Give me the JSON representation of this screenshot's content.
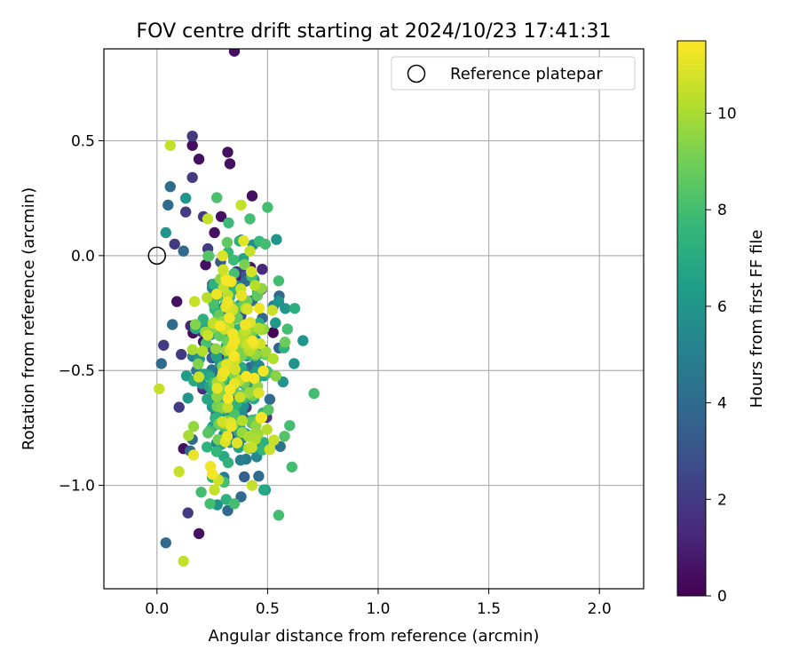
{
  "chart_data": {
    "type": "scatter",
    "title": "FOV centre drift starting at 2024/10/23 17:41:31",
    "xlabel": "Angular distance from reference (arcmin)",
    "ylabel": "Rotation from reference (arcmin)",
    "xlim": [
      -0.24,
      2.2
    ],
    "ylim": [
      -1.45,
      0.9
    ],
    "xticks": [
      0.0,
      0.5,
      1.0,
      1.5,
      2.0
    ],
    "xtick_labels": [
      "0.0",
      "0.5",
      "1.0",
      "1.5",
      "2.0"
    ],
    "yticks": [
      -1.0,
      -0.5,
      0.0,
      0.5
    ],
    "ytick_labels": [
      "−1.0",
      "−0.5",
      "0.0",
      "0.5"
    ],
    "grid": true,
    "legend": {
      "position": "top-right",
      "entries": [
        {
          "label": "Reference platepar",
          "marker": "open-circle"
        }
      ]
    },
    "reference_point": {
      "x": 0.0,
      "y": 0.0
    },
    "colorbar": {
      "label": "Hours from first FF file",
      "range": [
        0,
        11.5
      ],
      "ticks": [
        0,
        2,
        4,
        6,
        8,
        10
      ],
      "tick_labels": [
        "0",
        "2",
        "4",
        "6",
        "8",
        "10"
      ],
      "colormap": "viridis",
      "stops": [
        "#440154",
        "#482878",
        "#3e4989",
        "#31688e",
        "#26828e",
        "#1f9e89",
        "#35b779",
        "#6ece58",
        "#b5de2b",
        "#fde725"
      ]
    },
    "point_count": 420,
    "cluster_summary": "points concentrated at x 0.0–0.7 arcmin, y −1.3–0.9 arcmin, colored by hours 0–11.5",
    "series": [
      {
        "name": "hours 0–1 (purple)",
        "points": [
          [
            0.35,
            0.89
          ],
          [
            0.19,
            0.42
          ],
          [
            0.33,
            0.4
          ],
          [
            0.32,
            0.45
          ],
          [
            0.43,
            0.26
          ],
          [
            0.29,
            0.17
          ],
          [
            0.19,
            -1.21
          ],
          [
            0.12,
            -0.84
          ],
          [
            0.09,
            -0.2
          ],
          [
            0.26,
            0.1
          ],
          [
            0.22,
            -0.04
          ],
          [
            0.16,
            0.48
          ]
        ]
      },
      {
        "name": "hours 1–3 (indigo)",
        "points": [
          [
            0.16,
            0.52
          ],
          [
            0.16,
            0.34
          ],
          [
            0.21,
            0.17
          ],
          [
            0.13,
            0.19
          ],
          [
            0.08,
            0.05
          ],
          [
            0.03,
            -0.39
          ],
          [
            0.1,
            -0.66
          ],
          [
            0.14,
            -1.12
          ],
          [
            0.11,
            -0.43
          ],
          [
            0.2,
            -0.33
          ],
          [
            0.23,
            0.03
          ],
          [
            0.36,
            -0.07
          ]
        ]
      },
      {
        "name": "hours 3–5 (blue)",
        "points": [
          [
            0.04,
            -1.25
          ],
          [
            0.06,
            0.3
          ],
          [
            0.05,
            0.22
          ],
          [
            0.02,
            -0.47
          ],
          [
            0.07,
            -0.3
          ],
          [
            0.12,
            0.02
          ],
          [
            0.16,
            -0.8
          ],
          [
            0.15,
            -0.85
          ],
          [
            0.25,
            -0.61
          ],
          [
            0.32,
            -1.11
          ],
          [
            0.38,
            -1.05
          ],
          [
            0.46,
            -0.96
          ]
        ]
      },
      {
        "name": "hours 5–7 (teal)",
        "points": [
          [
            0.13,
            0.25
          ],
          [
            0.04,
            0.1
          ],
          [
            0.14,
            -0.62
          ],
          [
            0.3,
            -0.35
          ],
          [
            0.54,
            0.07
          ],
          [
            0.49,
            -1.02
          ],
          [
            0.55,
            -0.2
          ],
          [
            0.58,
            -0.23
          ],
          [
            0.66,
            -0.37
          ],
          [
            0.62,
            -0.47
          ],
          [
            0.57,
            -0.55
          ],
          [
            0.45,
            -0.84
          ]
        ]
      },
      {
        "name": "hours 7–9 (green)",
        "points": [
          [
            0.5,
            0.21
          ],
          [
            0.42,
            0.16
          ],
          [
            0.49,
            0.05
          ],
          [
            0.55,
            -0.11
          ],
          [
            0.59,
            -0.32
          ],
          [
            0.71,
            -0.6
          ],
          [
            0.6,
            -0.74
          ],
          [
            0.61,
            -0.92
          ],
          [
            0.55,
            -1.13
          ],
          [
            0.35,
            -1.08
          ],
          [
            0.24,
            -1.08
          ],
          [
            0.2,
            -1.03
          ]
        ]
      },
      {
        "name": "hours 9–11.5 (yellow)",
        "points": [
          [
            0.06,
            0.48
          ],
          [
            0.23,
            0.16
          ],
          [
            0.38,
            0.22
          ],
          [
            0.01,
            -0.58
          ],
          [
            0.12,
            -1.33
          ],
          [
            0.1,
            -0.94
          ],
          [
            0.26,
            -1.02
          ],
          [
            0.43,
            -1.0
          ],
          [
            0.32,
            -0.66
          ],
          [
            0.42,
            0.02
          ],
          [
            0.17,
            -0.2
          ],
          [
            0.3,
            -0.14
          ]
        ]
      }
    ]
  }
}
